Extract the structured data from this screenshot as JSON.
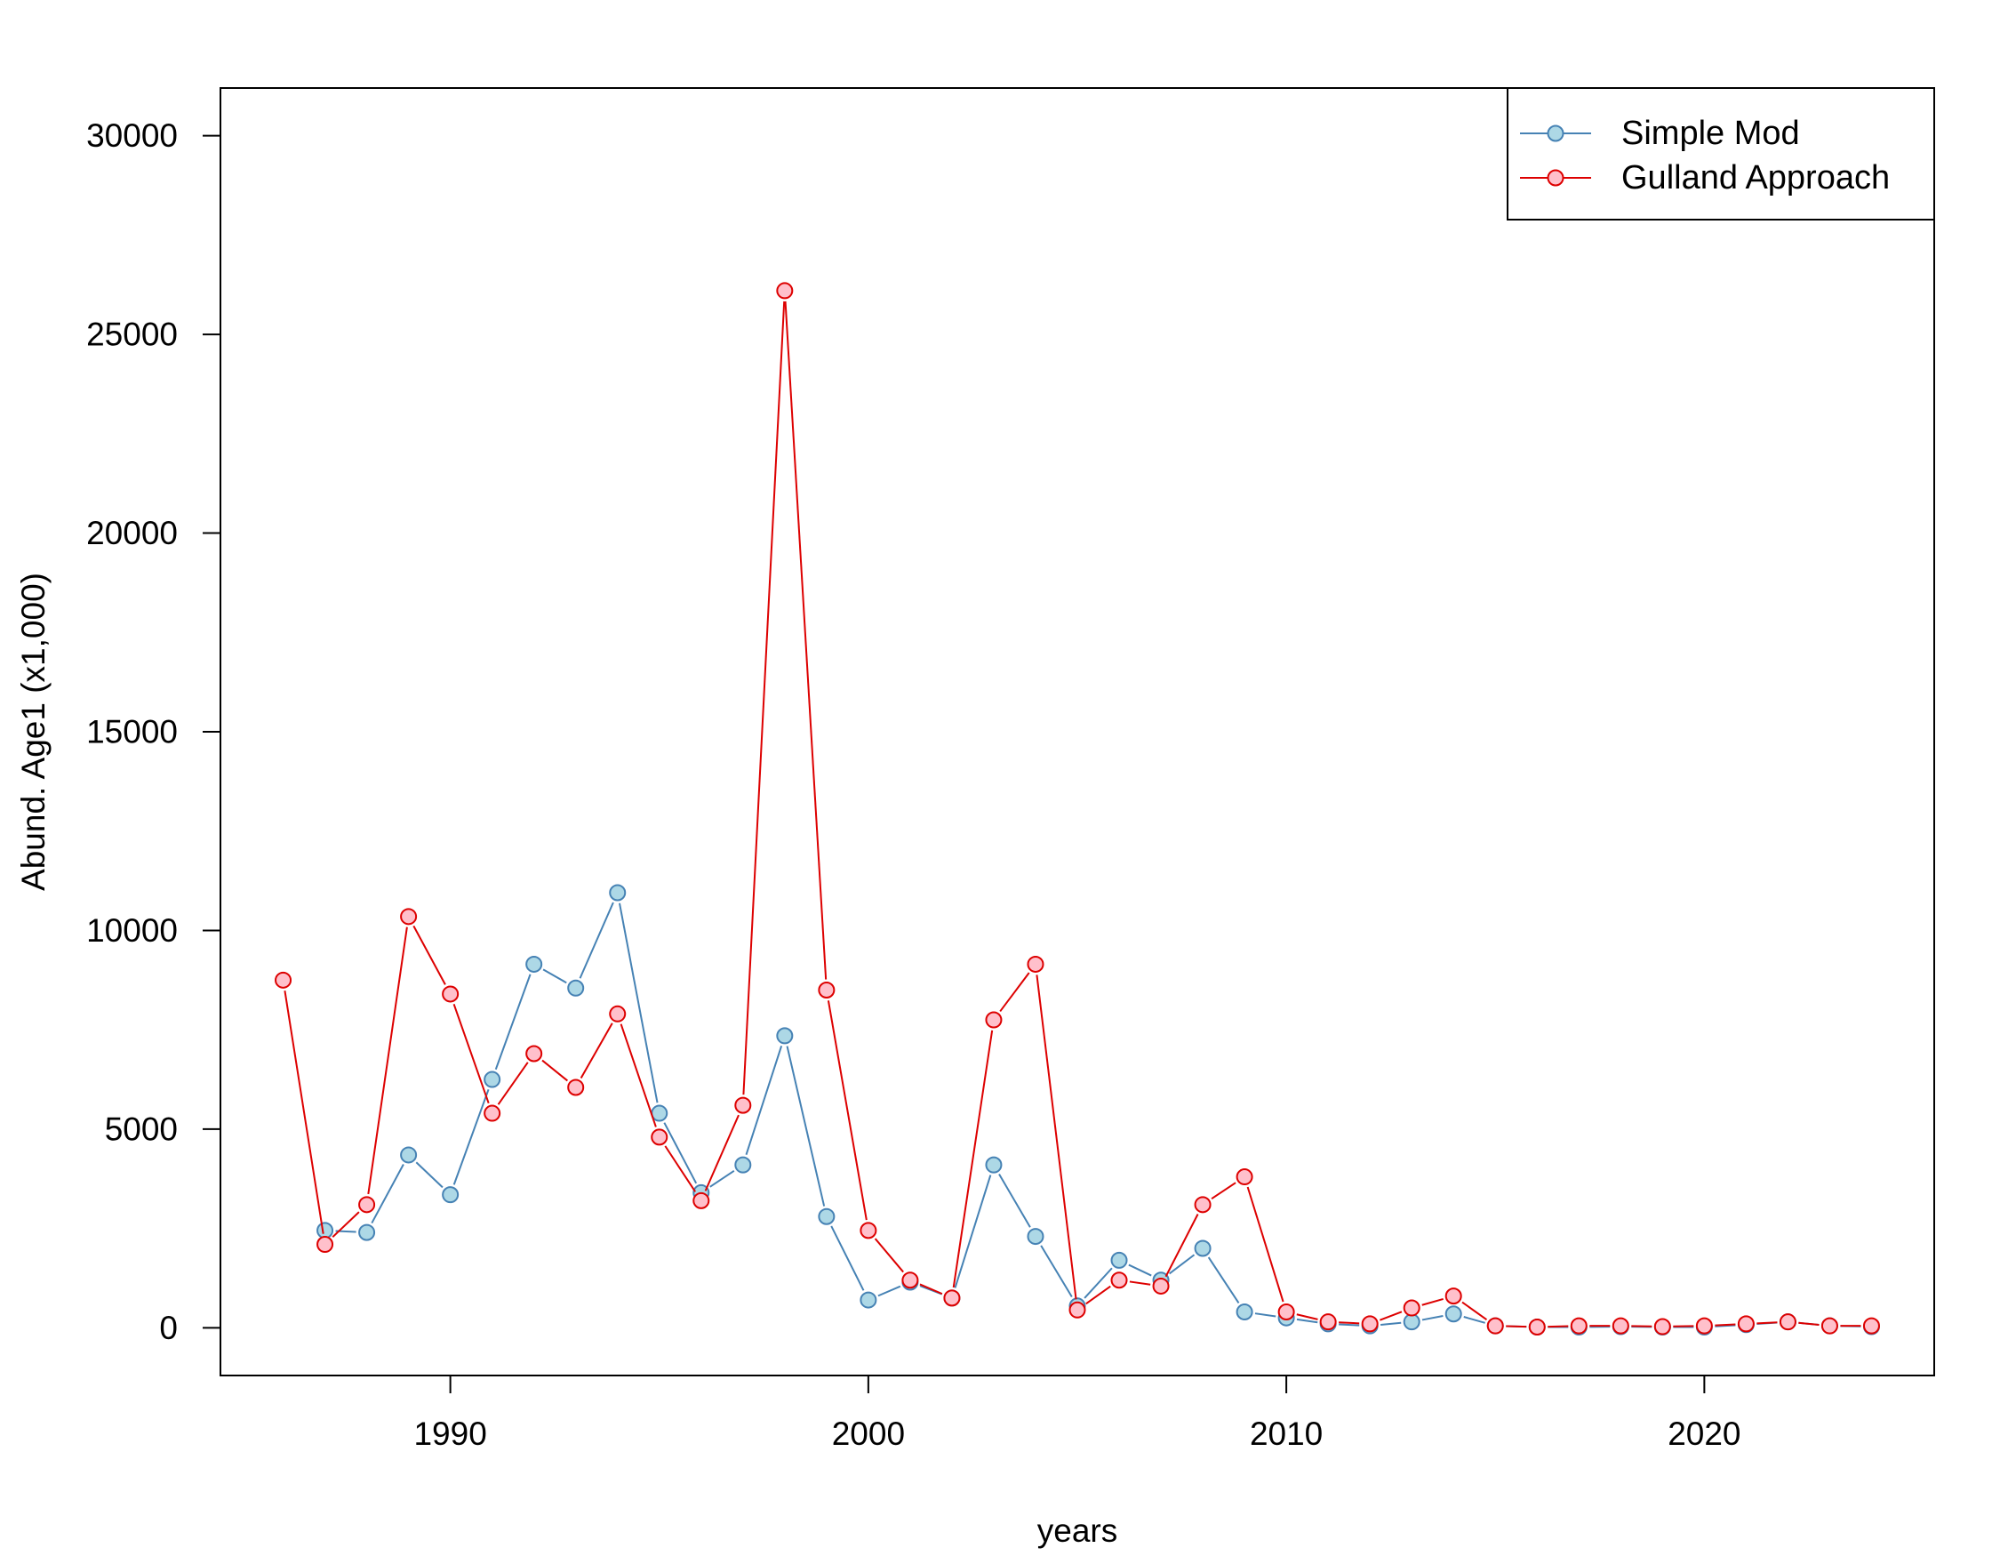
{
  "chart_data": {
    "type": "line",
    "title": "",
    "xlabel": "years",
    "ylabel": "Abund. Age1 (x1,000)",
    "xlim": [
      1984.5,
      2025.5
    ],
    "ylim": [
      -1200,
      31200
    ],
    "x_ticks": [
      1990,
      2000,
      2010,
      2020
    ],
    "y_ticks": [
      0,
      5000,
      10000,
      15000,
      20000,
      25000,
      30000
    ],
    "grid": false,
    "legend_position": "top-right",
    "x": [
      1986,
      1987,
      1988,
      1989,
      1990,
      1991,
      1992,
      1993,
      1994,
      1995,
      1996,
      1997,
      1998,
      1999,
      2000,
      2001,
      2002,
      2003,
      2004,
      2005,
      2006,
      2007,
      2008,
      2009,
      2010,
      2011,
      2012,
      2013,
      2014,
      2015,
      2016,
      2017,
      2018,
      2019,
      2020,
      2021,
      2022,
      2023,
      2024
    ],
    "series": [
      {
        "name": "Simple Mod",
        "line_color": "#4682B4",
        "marker_fill": "#ADD8E6",
        "marker_edge": "#4682B4",
        "values": [
          null,
          2450,
          2400,
          4350,
          3350,
          6250,
          9150,
          8550,
          10950,
          5400,
          3400,
          4100,
          7350,
          2800,
          700,
          1150,
          750,
          4100,
          2300,
          550,
          1700,
          1200,
          2000,
          400,
          250,
          100,
          50,
          150,
          350,
          50,
          20,
          20,
          30,
          20,
          20,
          80,
          150,
          50,
          30
        ]
      },
      {
        "name": "Gulland Approach",
        "line_color": "#DD0000",
        "marker_fill": "#FFC0CB",
        "marker_edge": "#DD0000",
        "values": [
          8750,
          2100,
          3100,
          10350,
          8400,
          5400,
          6900,
          6050,
          7900,
          4800,
          3200,
          5600,
          26100,
          8500,
          2450,
          1200,
          750,
          7750,
          9150,
          450,
          1200,
          1050,
          3100,
          3800,
          400,
          150,
          100,
          500,
          800,
          50,
          20,
          50,
          50,
          30,
          50,
          100,
          150,
          50,
          50
        ]
      }
    ]
  }
}
